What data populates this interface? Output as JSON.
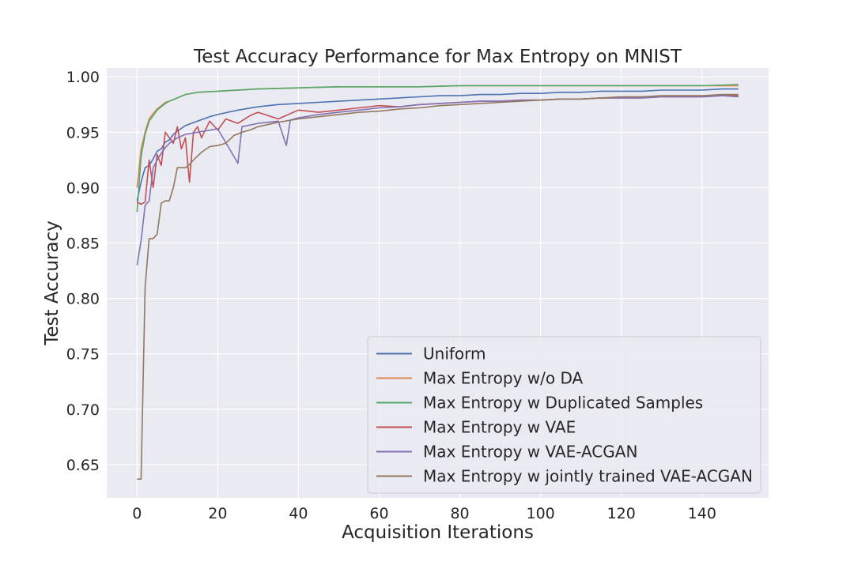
{
  "chart_data": {
    "type": "line",
    "title": "Test Accuracy Performance for Max Entropy on MNIST",
    "xlabel": "Acquisition Iterations",
    "ylabel": "Test Accuracy",
    "xlim": [
      -7.5,
      156.5
    ],
    "ylim": [
      0.62,
      1.008
    ],
    "xticks": [
      0,
      20,
      40,
      60,
      80,
      100,
      120,
      140
    ],
    "yticks": [
      0.65,
      0.7,
      0.75,
      0.8,
      0.85,
      0.9,
      0.95,
      1.0
    ],
    "ytick_labels": [
      "0.65",
      "0.70",
      "0.75",
      "0.80",
      "0.85",
      "0.90",
      "0.95",
      "1.00"
    ],
    "grid": true,
    "background": "#EAEAF2",
    "legend_position": "lower-right",
    "series": [
      {
        "name": "Uniform",
        "color": "#4C72B0",
        "points": [
          [
            0,
            0.888
          ],
          [
            1,
            0.905
          ],
          [
            2,
            0.918
          ],
          [
            3,
            0.92
          ],
          [
            4,
            0.926
          ],
          [
            5,
            0.933
          ],
          [
            6,
            0.935
          ],
          [
            7,
            0.941
          ],
          [
            8,
            0.943
          ],
          [
            9,
            0.948
          ],
          [
            10,
            0.951
          ],
          [
            12,
            0.956
          ],
          [
            15,
            0.96
          ],
          [
            18,
            0.964
          ],
          [
            20,
            0.966
          ],
          [
            25,
            0.97
          ],
          [
            30,
            0.973
          ],
          [
            35,
            0.975
          ],
          [
            40,
            0.976
          ],
          [
            45,
            0.977
          ],
          [
            50,
            0.978
          ],
          [
            55,
            0.979
          ],
          [
            60,
            0.98
          ],
          [
            65,
            0.981
          ],
          [
            70,
            0.982
          ],
          [
            75,
            0.983
          ],
          [
            80,
            0.983
          ],
          [
            85,
            0.984
          ],
          [
            90,
            0.984
          ],
          [
            95,
            0.985
          ],
          [
            100,
            0.985
          ],
          [
            105,
            0.986
          ],
          [
            110,
            0.986
          ],
          [
            115,
            0.987
          ],
          [
            120,
            0.987
          ],
          [
            125,
            0.987
          ],
          [
            130,
            0.988
          ],
          [
            135,
            0.988
          ],
          [
            140,
            0.988
          ],
          [
            145,
            0.989
          ],
          [
            149,
            0.989
          ]
        ]
      },
      {
        "name": "Max Entropy w/o DA",
        "color": "#DD8452",
        "points": [
          [
            0,
            0.9
          ],
          [
            1,
            0.935
          ],
          [
            2,
            0.95
          ],
          [
            3,
            0.962
          ],
          [
            4,
            0.967
          ],
          [
            5,
            0.971
          ],
          [
            6,
            0.974
          ],
          [
            7,
            0.977
          ],
          [
            8,
            0.978
          ],
          [
            10,
            0.981
          ],
          [
            12,
            0.984
          ],
          [
            15,
            0.986
          ],
          [
            20,
            0.987
          ],
          [
            30,
            0.989
          ],
          [
            40,
            0.99
          ],
          [
            50,
            0.991
          ],
          [
            60,
            0.991
          ],
          [
            70,
            0.991
          ],
          [
            80,
            0.992
          ],
          [
            90,
            0.992
          ],
          [
            100,
            0.992
          ],
          [
            110,
            0.992
          ],
          [
            120,
            0.992
          ],
          [
            130,
            0.992
          ],
          [
            140,
            0.992
          ],
          [
            149,
            0.992
          ]
        ]
      },
      {
        "name": "Max Entropy w Duplicated Samples",
        "color": "#55A868",
        "points": [
          [
            0,
            0.878
          ],
          [
            1,
            0.928
          ],
          [
            2,
            0.948
          ],
          [
            3,
            0.96
          ],
          [
            4,
            0.965
          ],
          [
            5,
            0.97
          ],
          [
            6,
            0.973
          ],
          [
            7,
            0.976
          ],
          [
            8,
            0.978
          ],
          [
            10,
            0.981
          ],
          [
            12,
            0.984
          ],
          [
            15,
            0.986
          ],
          [
            20,
            0.987
          ],
          [
            30,
            0.989
          ],
          [
            40,
            0.99
          ],
          [
            50,
            0.991
          ],
          [
            60,
            0.991
          ],
          [
            70,
            0.991
          ],
          [
            80,
            0.992
          ],
          [
            90,
            0.992
          ],
          [
            100,
            0.992
          ],
          [
            110,
            0.992
          ],
          [
            120,
            0.992
          ],
          [
            130,
            0.992
          ],
          [
            140,
            0.992
          ],
          [
            149,
            0.993
          ]
        ]
      },
      {
        "name": "Max Entropy w VAE",
        "color": "#C44E52",
        "points": [
          [
            0,
            0.887
          ],
          [
            1,
            0.885
          ],
          [
            2,
            0.887
          ],
          [
            3,
            0.925
          ],
          [
            4,
            0.9
          ],
          [
            5,
            0.93
          ],
          [
            6,
            0.92
          ],
          [
            7,
            0.95
          ],
          [
            8,
            0.945
          ],
          [
            9,
            0.94
          ],
          [
            10,
            0.955
          ],
          [
            11,
            0.935
          ],
          [
            12,
            0.945
          ],
          [
            13,
            0.905
          ],
          [
            14,
            0.95
          ],
          [
            15,
            0.955
          ],
          [
            16,
            0.945
          ],
          [
            18,
            0.96
          ],
          [
            20,
            0.952
          ],
          [
            22,
            0.962
          ],
          [
            25,
            0.958
          ],
          [
            28,
            0.965
          ],
          [
            30,
            0.968
          ],
          [
            35,
            0.962
          ],
          [
            40,
            0.97
          ],
          [
            45,
            0.968
          ],
          [
            50,
            0.97
          ],
          [
            55,
            0.972
          ],
          [
            60,
            0.974
          ],
          [
            65,
            0.973
          ],
          [
            70,
            0.975
          ],
          [
            75,
            0.976
          ],
          [
            80,
            0.977
          ],
          [
            85,
            0.978
          ],
          [
            90,
            0.978
          ],
          [
            95,
            0.979
          ],
          [
            100,
            0.979
          ],
          [
            105,
            0.98
          ],
          [
            110,
            0.98
          ],
          [
            115,
            0.981
          ],
          [
            120,
            0.981
          ],
          [
            125,
            0.981
          ],
          [
            130,
            0.982
          ],
          [
            135,
            0.982
          ],
          [
            140,
            0.982
          ],
          [
            145,
            0.983
          ],
          [
            149,
            0.983
          ]
        ]
      },
      {
        "name": "Max Entropy w VAE-ACGAN",
        "color": "#8172B3",
        "points": [
          [
            0,
            0.83
          ],
          [
            1,
            0.852
          ],
          [
            2,
            0.884
          ],
          [
            3,
            0.888
          ],
          [
            4,
            0.918
          ],
          [
            5,
            0.925
          ],
          [
            6,
            0.931
          ],
          [
            7,
            0.936
          ],
          [
            8,
            0.94
          ],
          [
            10,
            0.945
          ],
          [
            12,
            0.948
          ],
          [
            15,
            0.95
          ],
          [
            20,
            0.953
          ],
          [
            25,
            0.922
          ],
          [
            26,
            0.955
          ],
          [
            30,
            0.958
          ],
          [
            35,
            0.96
          ],
          [
            37,
            0.938
          ],
          [
            38,
            0.961
          ],
          [
            40,
            0.963
          ],
          [
            45,
            0.966
          ],
          [
            50,
            0.968
          ],
          [
            55,
            0.97
          ],
          [
            60,
            0.972
          ],
          [
            65,
            0.973
          ],
          [
            70,
            0.975
          ],
          [
            75,
            0.976
          ],
          [
            80,
            0.977
          ],
          [
            85,
            0.978
          ],
          [
            90,
            0.978
          ],
          [
            95,
            0.979
          ],
          [
            100,
            0.979
          ],
          [
            105,
            0.98
          ],
          [
            110,
            0.98
          ],
          [
            115,
            0.981
          ],
          [
            120,
            0.981
          ],
          [
            125,
            0.981
          ],
          [
            130,
            0.982
          ],
          [
            135,
            0.982
          ],
          [
            140,
            0.982
          ],
          [
            145,
            0.983
          ],
          [
            149,
            0.982
          ]
        ]
      },
      {
        "name": "Max Entropy w jointly trained VAE-ACGAN",
        "color": "#937860",
        "points": [
          [
            0,
            0.637
          ],
          [
            1,
            0.637
          ],
          [
            2,
            0.81
          ],
          [
            3,
            0.854
          ],
          [
            4,
            0.854
          ],
          [
            5,
            0.858
          ],
          [
            6,
            0.886
          ],
          [
            7,
            0.888
          ],
          [
            8,
            0.888
          ],
          [
            9,
            0.9
          ],
          [
            10,
            0.918
          ],
          [
            12,
            0.918
          ],
          [
            13,
            0.921
          ],
          [
            14,
            0.925
          ],
          [
            16,
            0.932
          ],
          [
            18,
            0.937
          ],
          [
            20,
            0.938
          ],
          [
            22,
            0.94
          ],
          [
            24,
            0.947
          ],
          [
            26,
            0.95
          ],
          [
            28,
            0.952
          ],
          [
            30,
            0.955
          ],
          [
            35,
            0.959
          ],
          [
            40,
            0.962
          ],
          [
            45,
            0.964
          ],
          [
            50,
            0.966
          ],
          [
            55,
            0.968
          ],
          [
            60,
            0.969
          ],
          [
            65,
            0.971
          ],
          [
            70,
            0.972
          ],
          [
            75,
            0.974
          ],
          [
            80,
            0.975
          ],
          [
            85,
            0.976
          ],
          [
            90,
            0.977
          ],
          [
            95,
            0.978
          ],
          [
            100,
            0.979
          ],
          [
            105,
            0.98
          ],
          [
            110,
            0.98
          ],
          [
            115,
            0.981
          ],
          [
            120,
            0.982
          ],
          [
            125,
            0.982
          ],
          [
            130,
            0.983
          ],
          [
            135,
            0.983
          ],
          [
            140,
            0.983
          ],
          [
            145,
            0.984
          ],
          [
            149,
            0.984
          ]
        ]
      }
    ]
  }
}
